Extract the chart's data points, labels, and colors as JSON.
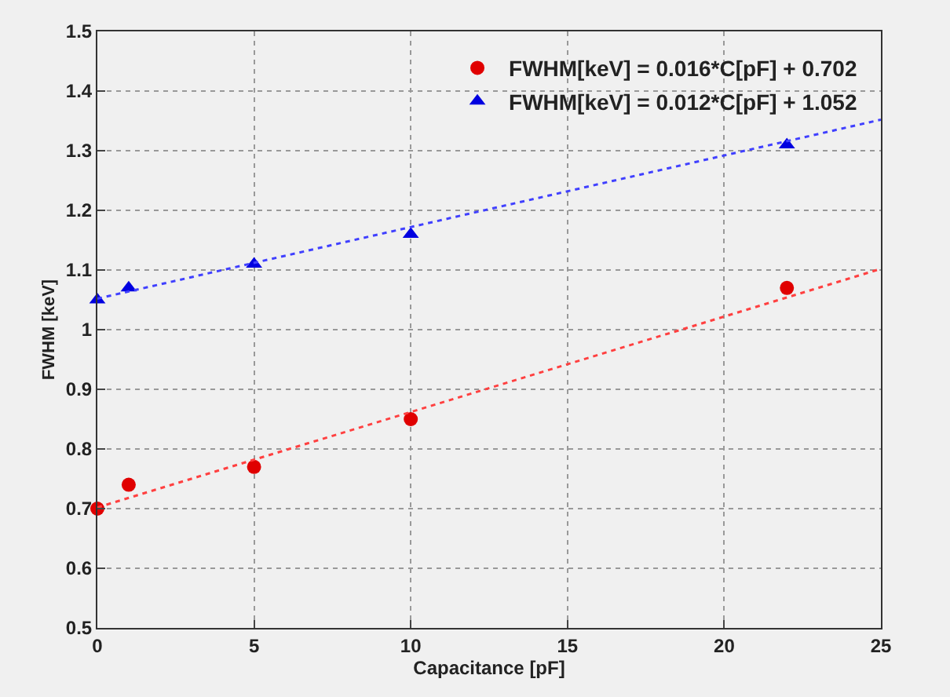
{
  "chart_data": {
    "type": "scatter",
    "xlabel": "Capacitance [pF]",
    "ylabel": "FWHM [keV]",
    "xlim": [
      0,
      25
    ],
    "xticks": [
      0,
      5,
      10,
      15,
      20,
      25
    ],
    "ylim": [
      0.5,
      1.5
    ],
    "yticks": [
      0.5,
      0.6,
      0.7,
      0.8,
      0.9,
      1,
      1.1,
      1.2,
      1.3,
      1.4,
      1.5
    ],
    "grid": true,
    "legend": "top right",
    "series": [
      {
        "name": "FWHM[keV] = 0.016*C[pF] + 0.702",
        "color": "#e00000",
        "marker": "circle",
        "x": [
          0,
          1,
          5,
          10,
          22
        ],
        "values": [
          0.7,
          0.74,
          0.77,
          0.85,
          1.07
        ]
      },
      {
        "name": "FWHM[keV] = 0.012*C[pF] + 1.052",
        "color": "#0000e0",
        "marker": "triangle",
        "x": [
          0,
          1,
          5,
          10,
          22
        ],
        "values": [
          1.05,
          1.07,
          1.11,
          1.16,
          1.31
        ]
      },
      {
        "type": "line",
        "color": "#ff4040",
        "marker": "none",
        "line_style": "dotted",
        "x": [
          0,
          25
        ],
        "values": [
          0.702,
          1.102
        ]
      },
      {
        "type": "line",
        "color": "#4040ff",
        "marker": "none",
        "line_style": "dotted",
        "x": [
          0,
          25
        ],
        "values": [
          1.052,
          1.352
        ]
      }
    ]
  }
}
